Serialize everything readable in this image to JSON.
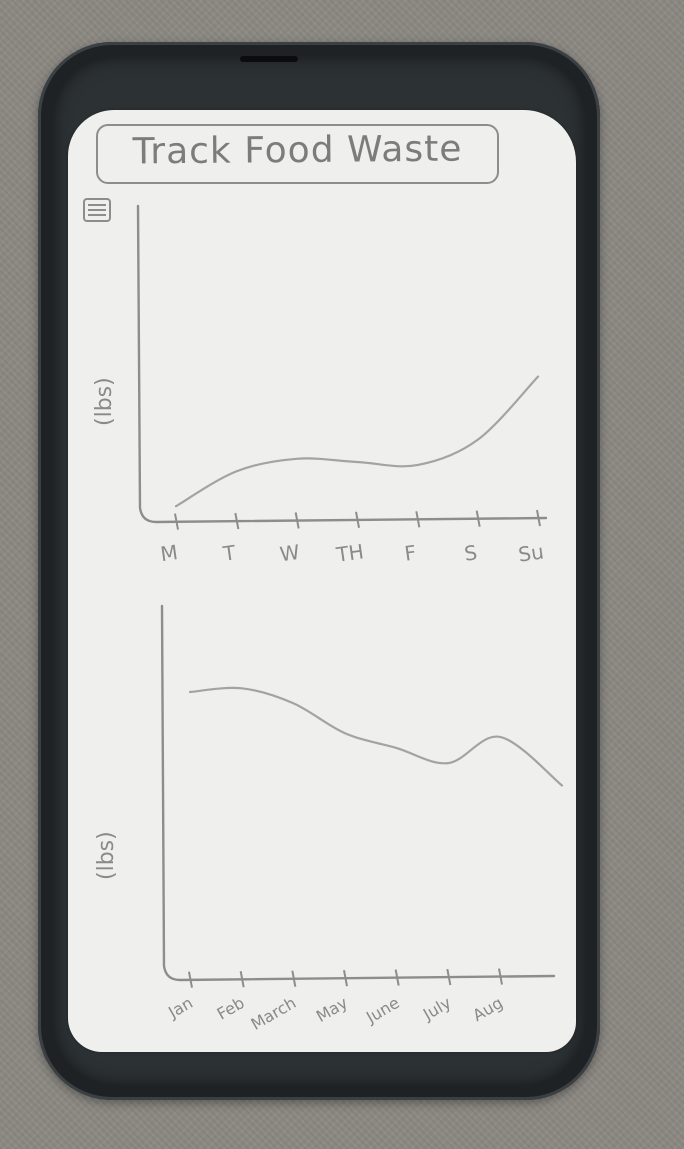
{
  "header": {
    "title": "Track Food Waste",
    "menu_icon": "hamburger-menu-icon"
  },
  "colors": {
    "paper": "#efefed",
    "pencil": "#8d8d8d",
    "pencil_light": "#a3a3a3",
    "phone_case": "#1e2224",
    "desk": "#8c8983"
  },
  "chart_data": [
    {
      "type": "line",
      "ylabel": "(lbs)",
      "categories": [
        "M",
        "T",
        "W",
        "TH",
        "F",
        "S",
        "Su"
      ],
      "series": [
        {
          "values": [
            0.5,
            1.6,
            2.0,
            1.9,
            1.8,
            2.6,
            4.6
          ]
        }
      ],
      "ylim": [
        0,
        10
      ],
      "grid": false
    },
    {
      "type": "line",
      "ylabel": "(lbs)",
      "categories": [
        "Jan",
        "Feb",
        "March",
        "May",
        "June",
        "July",
        "Aug"
      ],
      "series": [
        {
          "values": [
            7.7,
            7.8,
            7.4,
            6.6,
            6.2,
            5.8,
            6.5
          ]
        }
      ],
      "ylim": [
        0,
        10
      ],
      "grid": false
    }
  ]
}
